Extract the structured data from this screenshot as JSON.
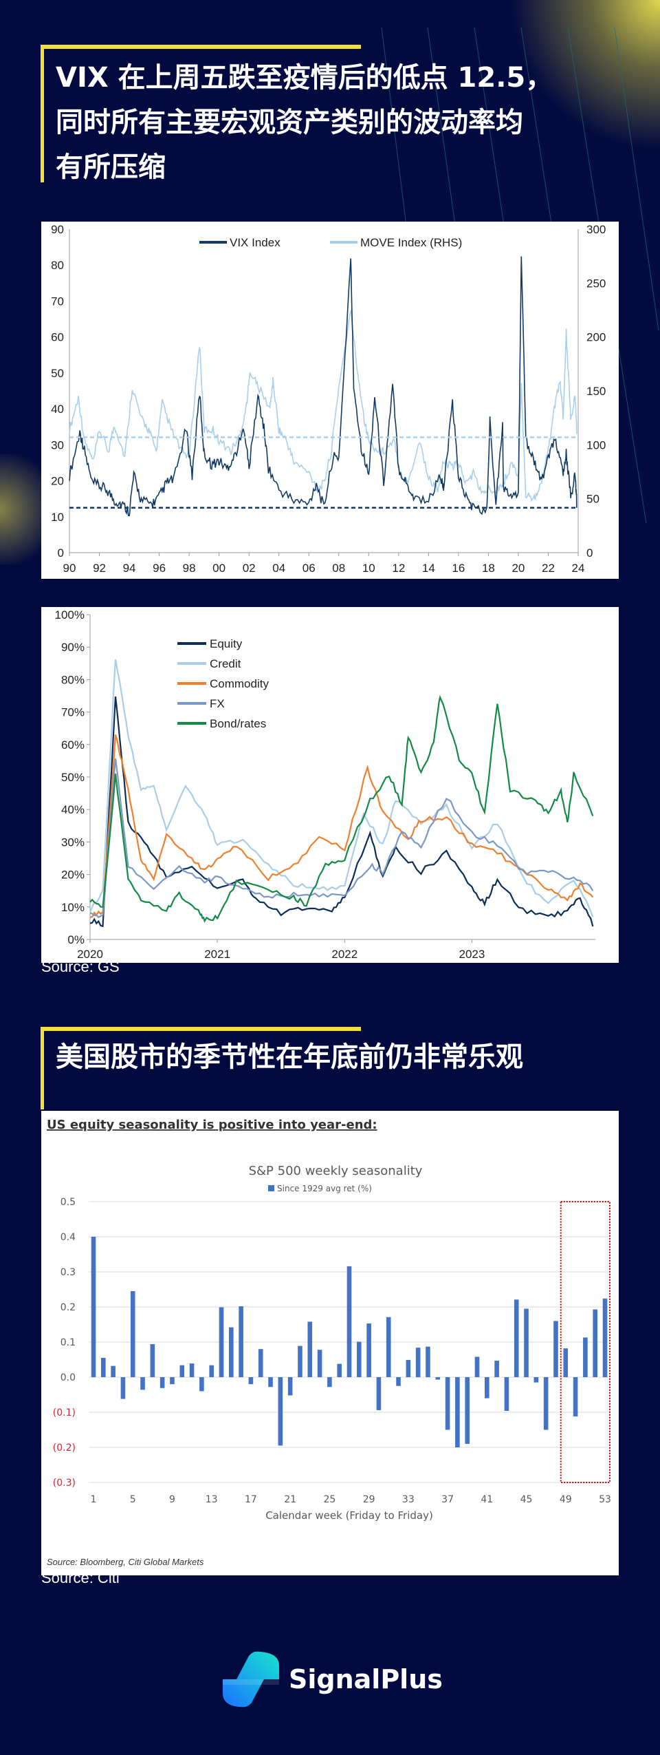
{
  "colors": {
    "background": "#020a3f",
    "accent_yellow": "#f2e03a",
    "vix": "#123a63",
    "move": "#a9cfee",
    "bar": "#4472c4",
    "negative_label": "#e0202a",
    "highlight_box": "#c00000"
  },
  "section1": {
    "title_lines": [
      "VIX 在上周五跌至疫情后的低点 12.5，",
      "同时所有主要宏观资产类别的波动率均",
      "有所压缩"
    ]
  },
  "section2": {
    "title": "美国股市的季节性在年底前仍非常乐观"
  },
  "source_gs": "Source: GS",
  "source_citi": "Source: Citi",
  "brand": {
    "name": "SignalPlus",
    "icon": "signalplus-logo-icon"
  },
  "chart_data": [
    {
      "type": "line",
      "title": "",
      "xlim": [
        1990,
        2024
      ],
      "x_tick_labels": [
        "90",
        "92",
        "94",
        "96",
        "98",
        "00",
        "02",
        "04",
        "06",
        "08",
        "10",
        "12",
        "14",
        "16",
        "18",
        "20",
        "22",
        "24"
      ],
      "ylim_left": [
        0,
        90
      ],
      "ylim_right": [
        0,
        300
      ],
      "y_ticks_left": [
        0,
        10,
        20,
        30,
        40,
        50,
        60,
        70,
        80,
        90
      ],
      "y_ticks_right": [
        0,
        50,
        100,
        150,
        200,
        250,
        300
      ],
      "legend": "top-center",
      "reference_lines": [
        {
          "series": "VIX Index",
          "value": 12.5,
          "style": "dashed"
        },
        {
          "series": "MOVE Index (RHS)",
          "value": 107,
          "style": "dashed"
        }
      ],
      "series": [
        {
          "name": "VIX Index",
          "axis": "left",
          "color": "#123a63",
          "x": [
            1990,
            1990.7,
            1991,
            1991.5,
            1992,
            1992.5,
            1993,
            1993.5,
            1994,
            1994.3,
            1994.8,
            1995.5,
            1996,
            1996.5,
            1997,
            1997.8,
            1998.2,
            1998.7,
            1999,
            1999.5,
            2000,
            2000.5,
            2001,
            2001.7,
            2002,
            2002.6,
            2003,
            2003.3,
            2004,
            2005,
            2006,
            2006.5,
            2007,
            2007.6,
            2008,
            2008.8,
            2009,
            2009.5,
            2010,
            2010.4,
            2011,
            2011.6,
            2012,
            2012.5,
            2013,
            2014,
            2014.8,
            2015,
            2015.6,
            2016,
            2016.5,
            2017,
            2017.9,
            2018.1,
            2018.5,
            2018.95,
            2019,
            2019.5,
            2020,
            2020.2,
            2020.5,
            2021,
            2021.5,
            2022,
            2022.5,
            2023,
            2023.2,
            2023.5,
            2023.8,
            2023.9
          ],
          "y": [
            20,
            32,
            27,
            18,
            17,
            16,
            13,
            12,
            10,
            20,
            13,
            12,
            14,
            18,
            19,
            33,
            20,
            43,
            26,
            23,
            24,
            22,
            25,
            33,
            22,
            42,
            33,
            22,
            16,
            13,
            12,
            18,
            11,
            25,
            25,
            80,
            45,
            28,
            20,
            42,
            18,
            45,
            22,
            18,
            14,
            13,
            20,
            16,
            40,
            20,
            14,
            11,
            10,
            35,
            13,
            34,
            17,
            14,
            14,
            82,
            30,
            25,
            18,
            25,
            30,
            20,
            26,
            14,
            20,
            12.5
          ]
        },
        {
          "name": "MOVE Index (RHS)",
          "axis": "right",
          "color": "#a9cfee",
          "x": [
            1990,
            1990.6,
            1991,
            1991.6,
            1992,
            1992.6,
            1993,
            1993.7,
            1994.2,
            1994.8,
            1995.3,
            1995.8,
            1996.2,
            1996.8,
            1997.5,
            1998,
            1998.7,
            1999,
            1999.6,
            2000,
            2000.8,
            2001.4,
            2001.8,
            2002.1,
            2002.6,
            2003.4,
            2003.6,
            2004,
            2004.5,
            2005,
            2006,
            2006.6,
            2007,
            2007.5,
            2008,
            2008.8,
            2009.2,
            2009.7,
            2010,
            2010.6,
            2011,
            2011.7,
            2012,
            2012.6,
            2013.4,
            2014,
            2014.6,
            2015,
            2015.6,
            2016,
            2016.5,
            2017,
            2017.6,
            2018,
            2018.5,
            2019,
            2019.6,
            2020,
            2020.2,
            2020.5,
            2021,
            2021.5,
            2022,
            2022.4,
            2022.8,
            2023,
            2023.2,
            2023.5,
            2023.8,
            2023.9
          ],
          "y": [
            110,
            140,
            100,
            80,
            110,
            90,
            115,
            85,
            150,
            120,
            110,
            90,
            135,
            110,
            90,
            85,
            190,
            110,
            110,
            100,
            90,
            105,
            130,
            165,
            150,
            130,
            155,
            110,
            100,
            80,
            70,
            55,
            60,
            90,
            150,
            220,
            170,
            120,
            100,
            90,
            90,
            100,
            75,
            60,
            100,
            65,
            55,
            80,
            75,
            80,
            60,
            70,
            50,
            55,
            55,
            60,
            80,
            65,
            150,
            50,
            45,
            60,
            90,
            130,
            155,
            120,
            200,
            120,
            140,
            110
          ]
        }
      ]
    },
    {
      "type": "line",
      "title": "",
      "xlim": [
        2020,
        2023.97
      ],
      "x_tick_labels": [
        "2020",
        "2021",
        "2022",
        "2023"
      ],
      "y_tick_labels": [
        "0%",
        "10%",
        "20%",
        "30%",
        "40%",
        "50%",
        "60%",
        "70%",
        "80%",
        "90%",
        "100%"
      ],
      "ylim": [
        0,
        100
      ],
      "legend": "top-left",
      "series": [
        {
          "name": "Equity",
          "color": "#0c2d57",
          "x": [
            2020,
            2020.1,
            2020.2,
            2020.3,
            2020.45,
            2020.6,
            2020.8,
            2021,
            2021.2,
            2021.3,
            2021.5,
            2021.7,
            2021.9,
            2022,
            2022.2,
            2022.3,
            2022.4,
            2022.6,
            2022.8,
            2023,
            2023.1,
            2023.2,
            2023.4,
            2023.6,
            2023.75,
            2023.85,
            2023.95
          ],
          "y": [
            5,
            4,
            74,
            35,
            28,
            18,
            22,
            15,
            18,
            12,
            7,
            9,
            8,
            12,
            32,
            18,
            27,
            20,
            26,
            15,
            10,
            18,
            8,
            6,
            8,
            12,
            4
          ]
        },
        {
          "name": "Credit",
          "color": "#a9cde8",
          "x": [
            2020,
            2020.1,
            2020.2,
            2020.3,
            2020.4,
            2020.5,
            2020.6,
            2020.75,
            2020.9,
            2021,
            2021.2,
            2021.4,
            2021.6,
            2021.8,
            2022,
            2022.15,
            2022.3,
            2022.4,
            2022.6,
            2022.8,
            2023,
            2023.2,
            2023.4,
            2023.6,
            2023.8,
            2023.95
          ],
          "y": [
            8,
            14,
            86,
            62,
            45,
            47,
            33,
            47,
            38,
            28,
            30,
            22,
            16,
            15,
            15,
            38,
            28,
            42,
            35,
            40,
            28,
            35,
            18,
            10,
            18,
            7
          ]
        },
        {
          "name": "Commodity",
          "color": "#f07f2d",
          "x": [
            2020,
            2020.1,
            2020.2,
            2020.3,
            2020.4,
            2020.5,
            2020.6,
            2020.8,
            2020.9,
            2021,
            2021.15,
            2021.4,
            2021.6,
            2021.8,
            2022,
            2022.18,
            2022.3,
            2022.5,
            2022.6,
            2022.8,
            2023,
            2023.2,
            2023.4,
            2023.6,
            2023.75,
            2023.85,
            2023.95
          ],
          "y": [
            6,
            8,
            62,
            45,
            24,
            18,
            32,
            24,
            20,
            24,
            28,
            18,
            22,
            30,
            27,
            52,
            38,
            30,
            36,
            37,
            28,
            26,
            20,
            15,
            11,
            16,
            13
          ]
        },
        {
          "name": "FX",
          "color": "#7a97c6",
          "x": [
            2020,
            2020.1,
            2020.2,
            2020.3,
            2020.5,
            2020.7,
            2020.9,
            2021,
            2021.2,
            2021.4,
            2021.6,
            2021.8,
            2022,
            2022.2,
            2022.3,
            2022.45,
            2022.6,
            2022.8,
            2023,
            2023.2,
            2023.4,
            2023.6,
            2023.8,
            2023.95
          ],
          "y": [
            7,
            6,
            55,
            22,
            15,
            22,
            17,
            18,
            15,
            12,
            13,
            13,
            12,
            22,
            20,
            32,
            28,
            43,
            32,
            28,
            20,
            20,
            18,
            15
          ]
        },
        {
          "name": "Bond/rates",
          "color": "#138a45",
          "x": [
            2020,
            2020.1,
            2020.2,
            2020.3,
            2020.4,
            2020.6,
            2020.7,
            2020.85,
            2020.9,
            2021,
            2021.15,
            2021.4,
            2021.6,
            2021.7,
            2021.85,
            2022,
            2022.2,
            2022.35,
            2022.45,
            2022.5,
            2022.6,
            2022.7,
            2022.75,
            2022.9,
            2023,
            2023.1,
            2023.2,
            2023.3,
            2023.5,
            2023.6,
            2023.7,
            2023.75,
            2023.8,
            2023.95
          ],
          "y": [
            11,
            9,
            50,
            18,
            12,
            8,
            13,
            8,
            5,
            6,
            17,
            14,
            12,
            10,
            22,
            24,
            42,
            50,
            40,
            62,
            50,
            60,
            74,
            55,
            50,
            38,
            72,
            45,
            42,
            38,
            45,
            35,
            50,
            38
          ]
        }
      ]
    },
    {
      "type": "bar",
      "header": "US equity seasonality is positive into year-end",
      "header_suffix": ":",
      "title": "S&P 500 weekly seasonality",
      "legend_label": "Since 1929 avg ret (%)",
      "xlabel": "Calendar week (Friday to Friday)",
      "source": "Source: Bloomberg, Citi Global Markets",
      "ylim": [
        -0.3,
        0.5
      ],
      "y_tick_labels": [
        "(0.3)",
        "(0.2)",
        "(0.1)",
        "0.0",
        "0.1",
        "0.2",
        "0.3",
        "0.4",
        "0.5"
      ],
      "x_tick_labels": [
        "1",
        "5",
        "9",
        "13",
        "17",
        "21",
        "25",
        "29",
        "33",
        "37",
        "41",
        "45",
        "49",
        "53"
      ],
      "highlight_weeks": [
        49,
        53
      ],
      "categories": [
        1,
        2,
        3,
        4,
        5,
        6,
        7,
        8,
        9,
        10,
        11,
        12,
        13,
        14,
        15,
        16,
        17,
        18,
        19,
        20,
        21,
        22,
        23,
        24,
        25,
        26,
        27,
        28,
        29,
        30,
        31,
        32,
        33,
        34,
        35,
        36,
        37,
        38,
        39,
        40,
        41,
        42,
        43,
        44,
        45,
        46,
        47,
        48,
        49,
        50,
        51,
        52,
        53
      ],
      "values": [
        0.4,
        0.055,
        0.032,
        -0.062,
        0.245,
        -0.036,
        0.094,
        -0.031,
        -0.02,
        0.034,
        0.039,
        -0.04,
        0.034,
        0.199,
        0.142,
        0.202,
        -0.02,
        0.08,
        -0.028,
        -0.195,
        -0.052,
        0.089,
        0.158,
        0.078,
        -0.028,
        0.038,
        0.316,
        0.101,
        0.153,
        -0.094,
        0.171,
        -0.025,
        0.049,
        0.084,
        0.087,
        -0.007,
        -0.15,
        -0.2,
        -0.19,
        0.058,
        -0.06,
        0.047,
        -0.096,
        0.221,
        0.195,
        -0.015,
        -0.15,
        0.16,
        0.082,
        -0.112,
        0.113,
        0.193,
        0.224
      ]
    }
  ]
}
